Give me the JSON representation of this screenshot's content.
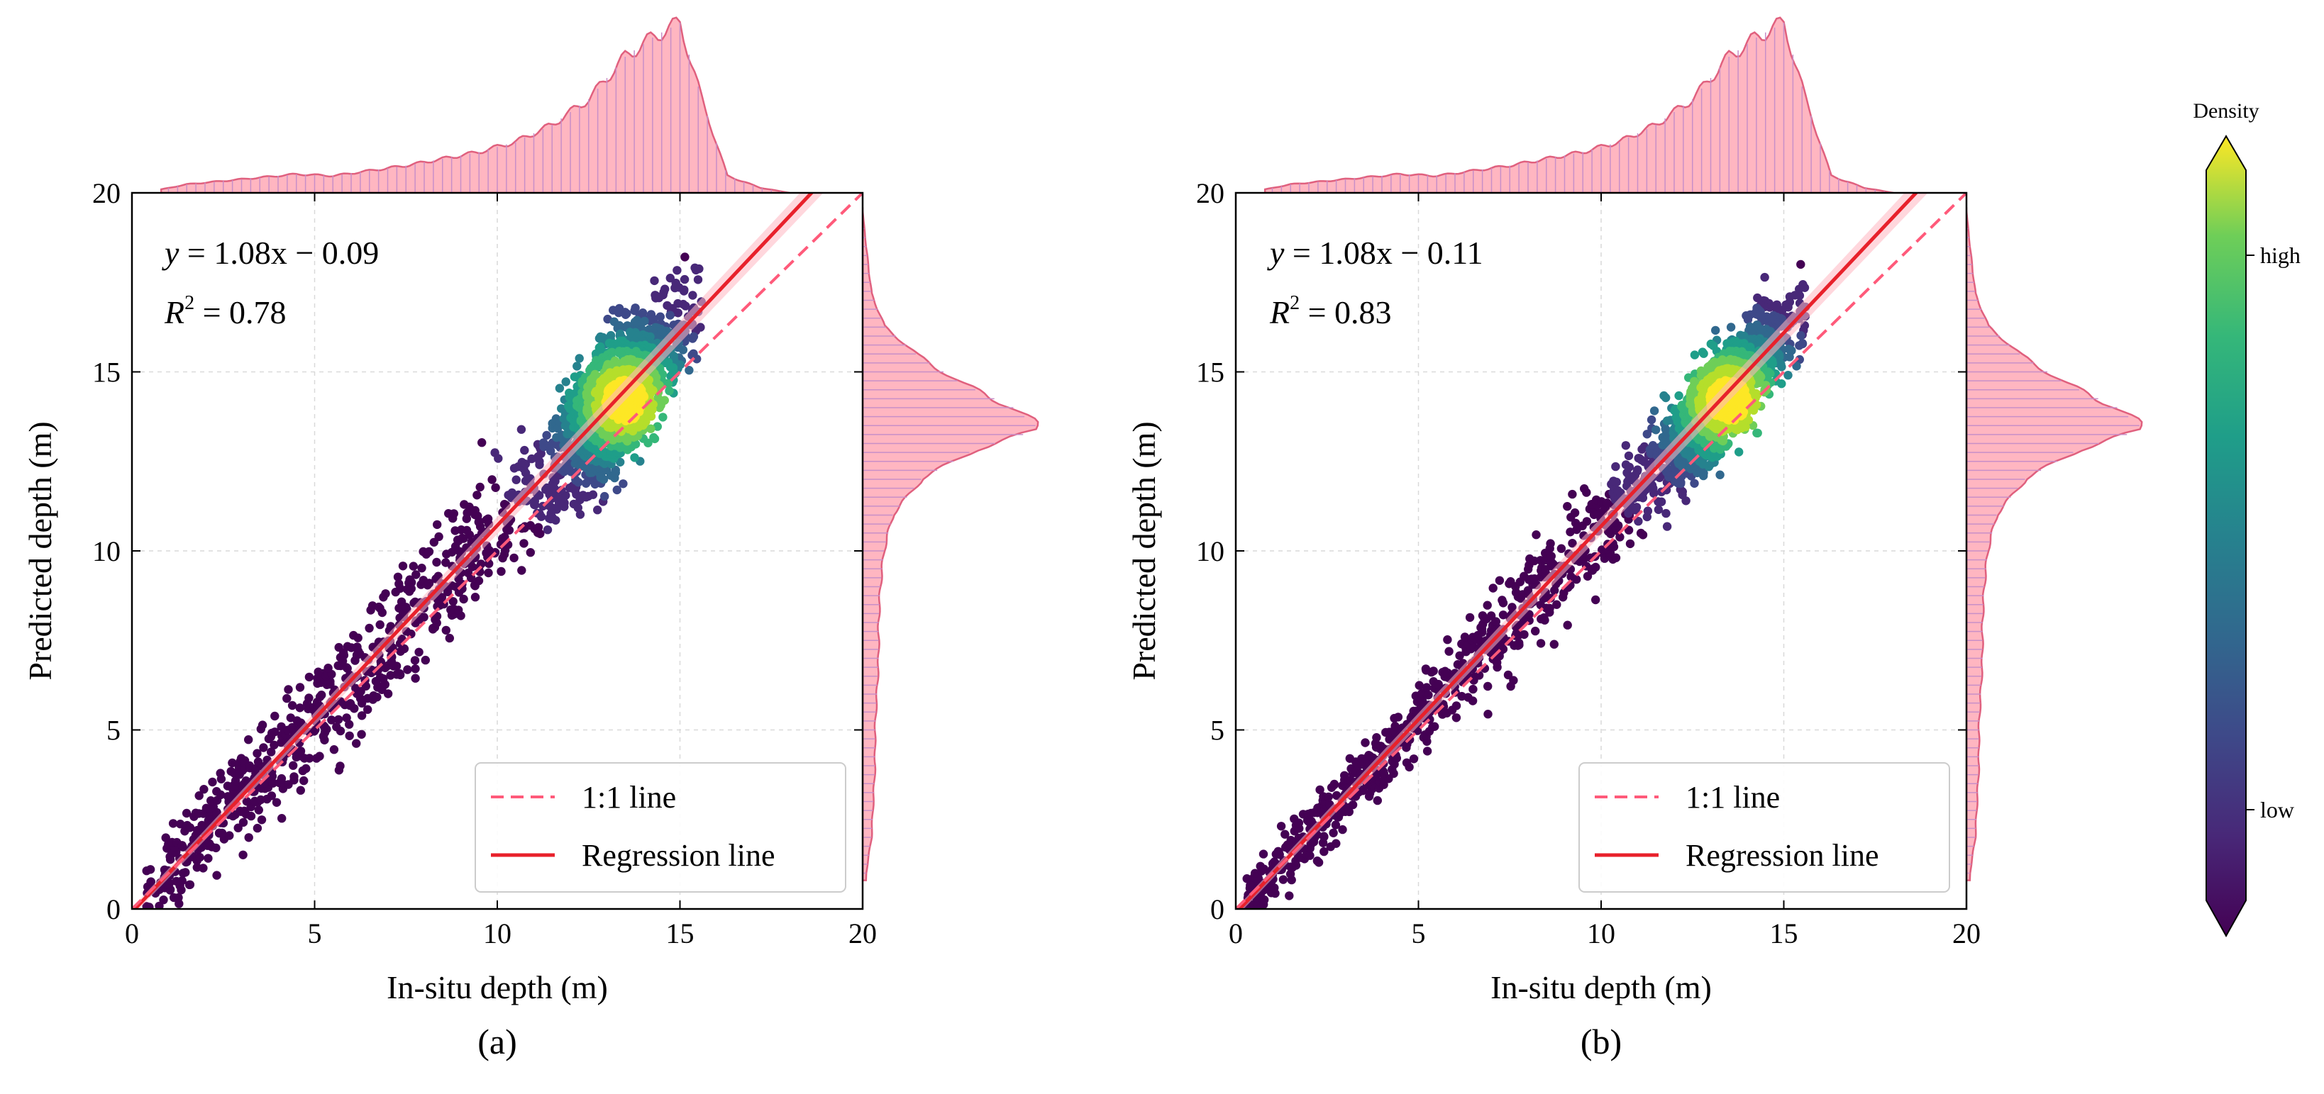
{
  "chart_data": [
    {
      "type": "scatter",
      "panel_label": "(a)",
      "xlabel": "In-situ depth (m)",
      "ylabel": "Predicted depth (m)",
      "xlim": [
        0,
        20
      ],
      "ylim": [
        0,
        20
      ],
      "xticks": [
        "0",
        "5",
        "10",
        "15",
        "20"
      ],
      "yticks": [
        "0",
        "5",
        "10",
        "15",
        "20"
      ],
      "grid": true,
      "equation": {
        "prefix": "y",
        "text": " = 1.08x − 0.09"
      },
      "r2": {
        "prefix": "R",
        "sup": "2",
        "text": " = 0.78"
      },
      "regression": {
        "slope": 1.08,
        "intercept": -0.09
      },
      "spread": 1.25,
      "legend": {
        "position": "lower-right",
        "entries": [
          "1:1 line",
          "Regression line"
        ]
      },
      "marginal_x": [
        [
          0.8,
          0.02
        ],
        [
          1.5,
          0.05
        ],
        [
          2.5,
          0.07
        ],
        [
          3.5,
          0.09
        ],
        [
          4.5,
          0.11
        ],
        [
          5.5,
          0.1
        ],
        [
          6.5,
          0.13
        ],
        [
          7.5,
          0.16
        ],
        [
          8.5,
          0.2
        ],
        [
          9.5,
          0.24
        ],
        [
          10.5,
          0.3
        ],
        [
          11.5,
          0.4
        ],
        [
          12.5,
          0.55
        ],
        [
          13.5,
          0.8
        ],
        [
          14.3,
          0.92
        ],
        [
          15.0,
          1.0
        ],
        [
          15.6,
          0.55
        ],
        [
          16.3,
          0.1
        ],
        [
          17.2,
          0.03
        ],
        [
          18.0,
          0.0
        ]
      ],
      "marginal_y": [
        [
          1.0,
          0.02
        ],
        [
          2.0,
          0.05
        ],
        [
          3.0,
          0.06
        ],
        [
          4.0,
          0.07
        ],
        [
          5.0,
          0.07
        ],
        [
          6.0,
          0.08
        ],
        [
          7.0,
          0.09
        ],
        [
          8.0,
          0.09
        ],
        [
          9.0,
          0.1
        ],
        [
          10.0,
          0.12
        ],
        [
          11.0,
          0.17
        ],
        [
          12.0,
          0.33
        ],
        [
          12.8,
          0.62
        ],
        [
          13.4,
          1.0
        ],
        [
          14.0,
          0.85
        ],
        [
          14.7,
          0.55
        ],
        [
          15.5,
          0.3
        ],
        [
          16.3,
          0.12
        ],
        [
          17.2,
          0.05
        ],
        [
          18.5,
          0.02
        ],
        [
          19.5,
          0.0
        ]
      ]
    },
    {
      "type": "scatter",
      "panel_label": "(b)",
      "xlabel": "In-situ depth (m)",
      "ylabel": "Predicted depth (m)",
      "xlim": [
        0,
        20
      ],
      "ylim": [
        0,
        20
      ],
      "xticks": [
        "0",
        "5",
        "10",
        "15",
        "20"
      ],
      "yticks": [
        "0",
        "5",
        "10",
        "15",
        "20"
      ],
      "grid": true,
      "equation": {
        "prefix": "y",
        "text": " = 1.08x − 0.11"
      },
      "r2": {
        "prefix": "R",
        "sup": "2",
        "text": " = 0.83"
      },
      "regression": {
        "slope": 1.08,
        "intercept": -0.11
      },
      "spread": 0.95,
      "legend": {
        "position": "lower-right",
        "entries": [
          "1:1 line",
          "Regression line"
        ]
      },
      "marginal_x": [
        [
          0.8,
          0.02
        ],
        [
          1.5,
          0.05
        ],
        [
          2.5,
          0.07
        ],
        [
          3.5,
          0.09
        ],
        [
          4.5,
          0.11
        ],
        [
          5.5,
          0.1
        ],
        [
          6.5,
          0.13
        ],
        [
          7.5,
          0.16
        ],
        [
          8.5,
          0.2
        ],
        [
          9.5,
          0.24
        ],
        [
          10.5,
          0.3
        ],
        [
          11.5,
          0.4
        ],
        [
          12.5,
          0.55
        ],
        [
          13.5,
          0.8
        ],
        [
          14.3,
          0.92
        ],
        [
          15.0,
          1.0
        ],
        [
          15.6,
          0.55
        ],
        [
          16.3,
          0.1
        ],
        [
          17.2,
          0.03
        ],
        [
          18.0,
          0.0
        ]
      ],
      "marginal_y": [
        [
          1.0,
          0.02
        ],
        [
          2.0,
          0.05
        ],
        [
          3.0,
          0.06
        ],
        [
          4.0,
          0.07
        ],
        [
          5.0,
          0.07
        ],
        [
          6.0,
          0.08
        ],
        [
          7.0,
          0.09
        ],
        [
          8.0,
          0.09
        ],
        [
          9.0,
          0.1
        ],
        [
          10.0,
          0.12
        ],
        [
          11.0,
          0.17
        ],
        [
          12.0,
          0.33
        ],
        [
          12.8,
          0.62
        ],
        [
          13.4,
          1.0
        ],
        [
          14.0,
          0.85
        ],
        [
          14.7,
          0.55
        ],
        [
          15.5,
          0.3
        ],
        [
          16.3,
          0.12
        ],
        [
          17.2,
          0.05
        ],
        [
          18.5,
          0.02
        ],
        [
          19.5,
          0.0
        ]
      ]
    }
  ],
  "colorbar": {
    "title": "Density",
    "high_label": "high",
    "low_label": "low",
    "colormap": "viridis"
  },
  "colors": {
    "identity_line": "#ff5a7a",
    "regression_line": "#e8212b",
    "marginal_fill": "#ffb6c1",
    "marginal_stroke": "#e0607e",
    "marginal_bar_line": "#c88fc8",
    "grid": "#d9d9d9"
  }
}
